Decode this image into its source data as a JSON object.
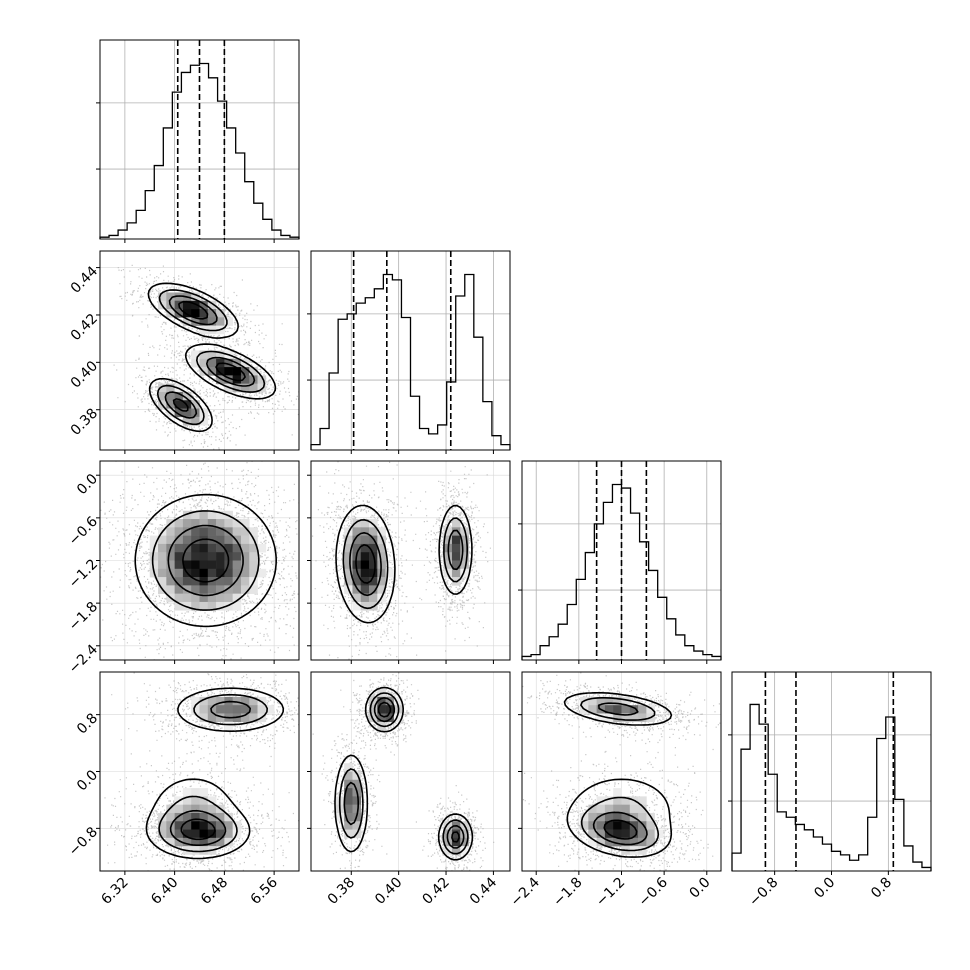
{
  "chart_data": {
    "type": "corner",
    "parameters": [
      {
        "range": [
          6.28,
          6.6
        ],
        "ticks": [
          "6.32",
          "6.40",
          "6.48",
          "6.56"
        ],
        "tick_values": [
          6.32,
          6.4,
          6.48,
          6.56
        ],
        "quantiles": [
          6.405,
          6.44,
          6.48
        ]
      },
      {
        "range": [
          0.363,
          0.447
        ],
        "ticks": [
          "0.38",
          "0.40",
          "0.42",
          "0.44"
        ],
        "tick_values": [
          0.38,
          0.4,
          0.42,
          0.44
        ],
        "quantiles": [
          0.381,
          0.395,
          0.422
        ]
      },
      {
        "range": [
          -2.6,
          0.2
        ],
        "ticks": [
          "−2.4",
          "−1.8",
          "−1.2",
          "−0.6",
          "0.0"
        ],
        "tick_values": [
          -2.4,
          -1.8,
          -1.2,
          -0.6,
          0.0
        ],
        "quantiles": [
          -1.55,
          -1.2,
          -0.85
        ]
      },
      {
        "range": [
          -1.4,
          1.4
        ],
        "ticks": [
          "−0.8",
          "0.0",
          "0.8"
        ],
        "tick_values": [
          -0.8,
          0.0,
          0.8
        ],
        "quantiles": [
          -0.93,
          -0.5,
          0.87
        ]
      }
    ],
    "histograms": [
      [
        0.01,
        0.02,
        0.05,
        0.09,
        0.16,
        0.27,
        0.41,
        0.62,
        0.82,
        0.93,
        0.97,
        0.98,
        0.9,
        0.77,
        0.62,
        0.48,
        0.32,
        0.2,
        0.11,
        0.05,
        0.02,
        0.01
      ],
      [
        0.03,
        0.12,
        0.43,
        0.73,
        0.76,
        0.82,
        0.85,
        0.9,
        0.98,
        0.95,
        0.74,
        0.3,
        0.12,
        0.09,
        0.14,
        0.38,
        0.86,
        0.98,
        0.63,
        0.27,
        0.08,
        0.03
      ],
      [
        0.02,
        0.03,
        0.08,
        0.13,
        0.2,
        0.31,
        0.45,
        0.6,
        0.76,
        0.88,
        0.98,
        0.96,
        0.82,
        0.66,
        0.5,
        0.35,
        0.23,
        0.14,
        0.08,
        0.05,
        0.03,
        0.02
      ],
      [
        0.1,
        0.68,
        0.93,
        0.82,
        0.54,
        0.33,
        0.3,
        0.26,
        0.23,
        0.19,
        0.15,
        0.11,
        0.09,
        0.06,
        0.09,
        0.3,
        0.74,
        0.86,
        0.4,
        0.14,
        0.05,
        0.02
      ]
    ],
    "blobs": {
      "1-0": [
        {
          "cx": 6.43,
          "cy": 0.422,
          "sx": 0.035,
          "sy": 0.0055,
          "rho": -0.6,
          "w": 1.0
        },
        {
          "cx": 6.49,
          "cy": 0.396,
          "sx": 0.035,
          "sy": 0.0055,
          "rho": -0.6,
          "w": 1.0
        },
        {
          "cx": 6.41,
          "cy": 0.382,
          "sx": 0.025,
          "sy": 0.0055,
          "rho": -0.6,
          "w": 0.9
        }
      ],
      "2-0": [
        {
          "cx": 6.45,
          "cy": -1.2,
          "sx": 0.055,
          "sy": 0.45,
          "rho": 0.0,
          "w": 1.0
        }
      ],
      "2-1": [
        {
          "cx": 0.386,
          "cy": -1.25,
          "sx": 0.006,
          "sy": 0.4,
          "rho": -0.1,
          "w": 1.0
        },
        {
          "cx": 0.424,
          "cy": -1.05,
          "sx": 0.0035,
          "sy": 0.32,
          "rho": 0.0,
          "w": 0.8
        }
      ],
      "3-0": [
        {
          "cx": 6.49,
          "cy": 0.87,
          "sx": 0.045,
          "sy": 0.16,
          "rho": 0.0,
          "w": 0.9
        },
        {
          "cx": 6.44,
          "cy": -0.85,
          "sx": 0.04,
          "sy": 0.18,
          "rho": 0.0,
          "w": 1.0
        },
        {
          "cx": 6.43,
          "cy": -0.55,
          "sx": 0.04,
          "sy": 0.3,
          "rho": 0.0,
          "w": 0.45
        }
      ],
      "3-1": [
        {
          "cx": 0.394,
          "cy": 0.87,
          "sx": 0.0038,
          "sy": 0.15,
          "rho": 0.0,
          "w": 0.9
        },
        {
          "cx": 0.38,
          "cy": -0.45,
          "sx": 0.0035,
          "sy": 0.35,
          "rho": 0.0,
          "w": 0.7
        },
        {
          "cx": 0.424,
          "cy": -0.92,
          "sx": 0.0035,
          "sy": 0.16,
          "rho": 0.0,
          "w": 0.8
        }
      ],
      "3-2": [
        {
          "cx": -1.25,
          "cy": 0.88,
          "sx": 0.4,
          "sy": 0.12,
          "rho": -0.4,
          "w": 0.9
        },
        {
          "cx": -1.2,
          "cy": -0.85,
          "sx": 0.32,
          "sy": 0.17,
          "rho": -0.3,
          "w": 1.0
        },
        {
          "cx": -1.2,
          "cy": -0.55,
          "sx": 0.45,
          "sy": 0.3,
          "rho": 0.0,
          "w": 0.45
        }
      ]
    }
  }
}
